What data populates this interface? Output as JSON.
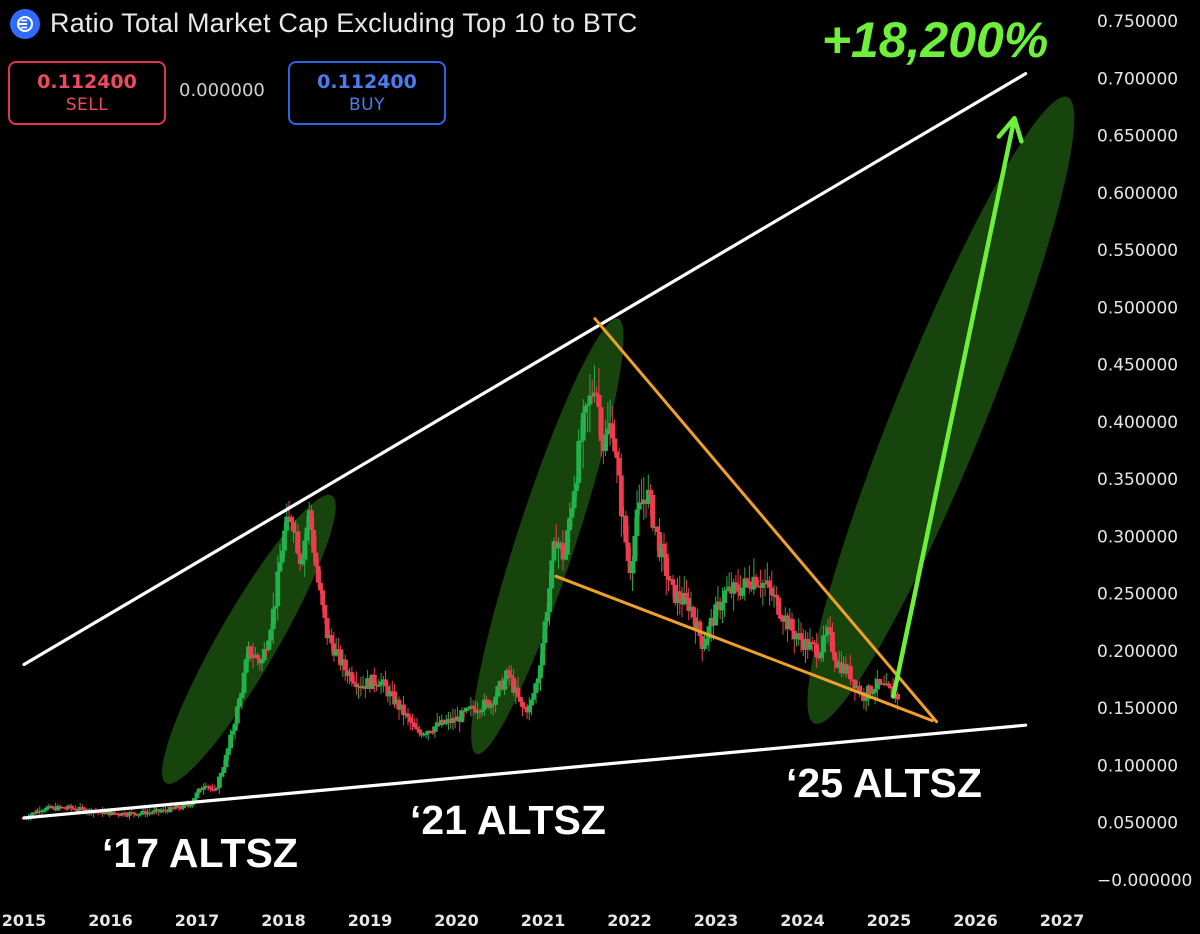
{
  "header": {
    "title": "Ratio Total Market Cap Excluding Top 10 to BTC",
    "logo_icon": "ratio-logo-icon"
  },
  "trade": {
    "sell_price": "0.112400",
    "sell_label": "SELL",
    "spread": "0.000000",
    "buy_price": "0.112400",
    "buy_label": "BUY"
  },
  "colors": {
    "background": "#000000",
    "up_candle": "#22b24c",
    "down_candle": "#ef3b4f",
    "trendline": "#ffffff",
    "wedge": "#f0a028",
    "highlight": "#1f5a10",
    "arrow": "#6ef03a",
    "sell": "#ef4a5e",
    "buy": "#4d7cf0"
  },
  "chart_data": {
    "type": "candlestick",
    "ylim": [
      -0.02,
      0.76
    ],
    "xlim": [
      2015.0,
      2027.4
    ],
    "y_ticks": [
      "0.750000",
      "0.700000",
      "0.650000",
      "0.600000",
      "0.550000",
      "0.500000",
      "0.450000",
      "0.400000",
      "0.350000",
      "0.300000",
      "0.250000",
      "0.200000",
      "0.150000",
      "0.100000",
      "0.050000",
      "−0.000000"
    ],
    "y_tick_values": [
      0.75,
      0.7,
      0.65,
      0.6,
      0.55,
      0.5,
      0.45,
      0.4,
      0.35,
      0.3,
      0.25,
      0.2,
      0.15,
      0.1,
      0.05,
      0.0
    ],
    "x_ticks": [
      "2015",
      "2016",
      "2017",
      "2018",
      "2019",
      "2020",
      "2021",
      "2022",
      "2023",
      "2024",
      "2025",
      "2026",
      "2027"
    ],
    "x_tick_values": [
      2015,
      2016,
      2017,
      2018,
      2019,
      2020,
      2021,
      2022,
      2023,
      2024,
      2025,
      2026,
      2027
    ],
    "price_anchors": [
      [
        2015.0,
        0.054
      ],
      [
        2015.2,
        0.062
      ],
      [
        2015.5,
        0.063
      ],
      [
        2015.8,
        0.06
      ],
      [
        2016.0,
        0.058
      ],
      [
        2016.3,
        0.058
      ],
      [
        2016.6,
        0.06
      ],
      [
        2016.9,
        0.065
      ],
      [
        2017.1,
        0.085
      ],
      [
        2017.2,
        0.075
      ],
      [
        2017.35,
        0.11
      ],
      [
        2017.5,
        0.16
      ],
      [
        2017.6,
        0.2
      ],
      [
        2017.75,
        0.19
      ],
      [
        2017.9,
        0.24
      ],
      [
        2018.0,
        0.3
      ],
      [
        2018.1,
        0.32
      ],
      [
        2018.2,
        0.28
      ],
      [
        2018.3,
        0.32
      ],
      [
        2018.4,
        0.26
      ],
      [
        2018.5,
        0.215
      ],
      [
        2018.7,
        0.185
      ],
      [
        2018.9,
        0.17
      ],
      [
        2019.1,
        0.175
      ],
      [
        2019.3,
        0.155
      ],
      [
        2019.55,
        0.128
      ],
      [
        2019.8,
        0.135
      ],
      [
        2020.0,
        0.14
      ],
      [
        2020.2,
        0.15
      ],
      [
        2020.4,
        0.155
      ],
      [
        2020.6,
        0.18
      ],
      [
        2020.75,
        0.15
      ],
      [
        2020.85,
        0.15
      ],
      [
        2020.95,
        0.18
      ],
      [
        2021.05,
        0.24
      ],
      [
        2021.15,
        0.3
      ],
      [
        2021.25,
        0.28
      ],
      [
        2021.35,
        0.34
      ],
      [
        2021.45,
        0.39
      ],
      [
        2021.55,
        0.42
      ],
      [
        2021.6,
        0.44
      ],
      [
        2021.7,
        0.38
      ],
      [
        2021.8,
        0.4
      ],
      [
        2021.9,
        0.33
      ],
      [
        2022.0,
        0.27
      ],
      [
        2022.1,
        0.32
      ],
      [
        2022.2,
        0.34
      ],
      [
        2022.35,
        0.29
      ],
      [
        2022.5,
        0.25
      ],
      [
        2022.7,
        0.24
      ],
      [
        2022.85,
        0.205
      ],
      [
        2022.95,
        0.225
      ],
      [
        2023.1,
        0.25
      ],
      [
        2023.3,
        0.255
      ],
      [
        2023.45,
        0.265
      ],
      [
        2023.6,
        0.255
      ],
      [
        2023.75,
        0.235
      ],
      [
        2023.9,
        0.215
      ],
      [
        2024.05,
        0.205
      ],
      [
        2024.2,
        0.2
      ],
      [
        2024.3,
        0.215
      ],
      [
        2024.4,
        0.19
      ],
      [
        2024.55,
        0.18
      ],
      [
        2024.7,
        0.16
      ],
      [
        2024.85,
        0.17
      ],
      [
        2025.0,
        0.165
      ],
      [
        2025.1,
        0.16
      ]
    ],
    "trendlines": [
      {
        "name": "upper-trendline",
        "from": [
          2015.0,
          0.188
        ],
        "to": [
          2026.58,
          0.704
        ]
      },
      {
        "name": "lower-trendline",
        "from": [
          2015.0,
          0.054
        ],
        "to": [
          2026.58,
          0.135
        ]
      },
      {
        "name": "wedge-top",
        "from": [
          2021.6,
          0.49
        ],
        "to": [
          2025.55,
          0.138
        ]
      },
      {
        "name": "wedge-bottom",
        "from": [
          2021.15,
          0.265
        ],
        "to": [
          2025.5,
          0.139
        ]
      }
    ],
    "annotations": [
      {
        "name": "gain-label",
        "text": "+18,200%",
        "color": "#6ef03a"
      },
      {
        "name": "altsz-2017-label",
        "text": "‘17 ALTSZ",
        "color": "#ffffff"
      },
      {
        "name": "altsz-2021-label",
        "text": "‘21 ALTSZ",
        "color": "#ffffff"
      },
      {
        "name": "altsz-2025-label",
        "text": "‘25 ALTSZ",
        "color": "#ffffff"
      }
    ],
    "highlights": [
      {
        "name": "highlight-2017",
        "center": [
          2017.6,
          0.21
        ],
        "rx_years": 0.55,
        "ry_value": 0.145,
        "rotate": 30
      },
      {
        "name": "highlight-2021",
        "center": [
          2021.05,
          0.3
        ],
        "rx_years": 0.55,
        "ry_value": 0.2,
        "rotate": 18
      },
      {
        "name": "highlight-2025",
        "center": [
          2025.6,
          0.41
        ],
        "rx_years": 0.85,
        "ry_value": 0.295,
        "rotate": 22
      }
    ],
    "arrow": {
      "name": "projection-arrow",
      "from": [
        2025.05,
        0.16
      ],
      "to": [
        2026.45,
        0.665
      ]
    }
  }
}
